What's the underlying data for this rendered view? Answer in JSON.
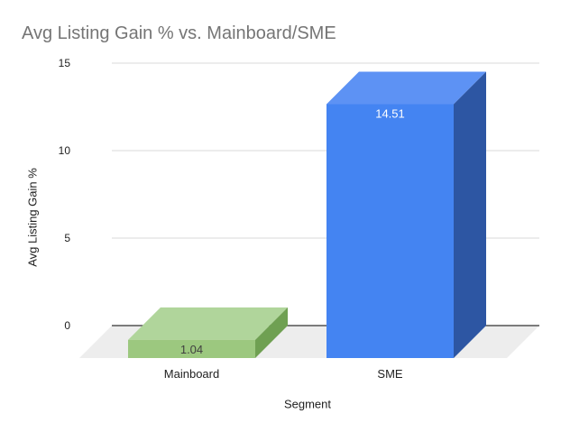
{
  "chart_data": {
    "type": "bar",
    "projection": "3d-column",
    "title": "Avg Listing Gain % vs. Mainboard/SME",
    "categories": [
      "Mainboard",
      "SME"
    ],
    "values": [
      1.04,
      14.51
    ],
    "data_labels": [
      "1.04",
      "14.51"
    ],
    "xlabel": "Segment",
    "ylabel": "Avg Listing Gain %",
    "ylim": [
      0,
      15
    ],
    "yticks": [
      0,
      5,
      10,
      15
    ],
    "grid": true,
    "legend_position": "none",
    "bar_colors": [
      {
        "category": "Mainboard",
        "front": "#9cc87f",
        "top": "#b0d59b",
        "side": "#6fa052",
        "label_color": "#404040"
      },
      {
        "category": "SME",
        "front": "#4484f2",
        "top": "#5d92f4",
        "side": "#2d56a3",
        "label_color": "#ffffff"
      }
    ],
    "colors": {
      "title": "#757575",
      "axis_text": "#212121",
      "gridline": "#d9d9d9",
      "zero_line": "#333333",
      "floor": "#ededed",
      "background": "#ffffff"
    }
  }
}
